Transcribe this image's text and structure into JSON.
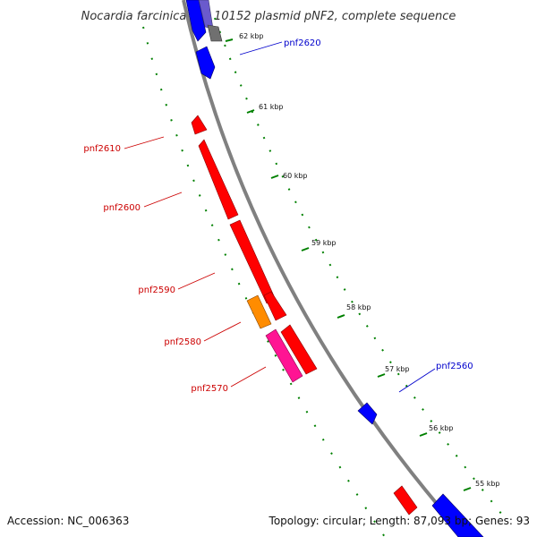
{
  "title": "Nocardia farcinica IFM 10152 plasmid pNF2, complete sequence",
  "accession": "Accession: NC_006363",
  "summary": "Topology: circular; Length: 87,093 bp; Genes: 93",
  "colors": {
    "forward": "#0000ff",
    "reverse": "#ff0000",
    "orange": "#ff8c00",
    "magenta": "#ff1493",
    "gray": "#707070",
    "purple": "#6a5acd",
    "ruler_dots": "#008000",
    "backbone": "#808080",
    "label_forward": "#0000cc",
    "label_reverse": "#cc0000"
  },
  "kbp_labels": [
    "62 kbp",
    "61 kbp",
    "60 kbp",
    "59 kbp",
    "58 kbp",
    "57 kbp",
    "56 kbp",
    "55 kbp"
  ],
  "gene_labels": {
    "pnf2620": "pnf2620",
    "pnf2610": "pnf2610",
    "pnf2600": "pnf2600",
    "pnf2590": "pnf2590",
    "pnf2580": "pnf2580",
    "pnf2570": "pnf2570",
    "pnf2560": "pnf2560"
  }
}
